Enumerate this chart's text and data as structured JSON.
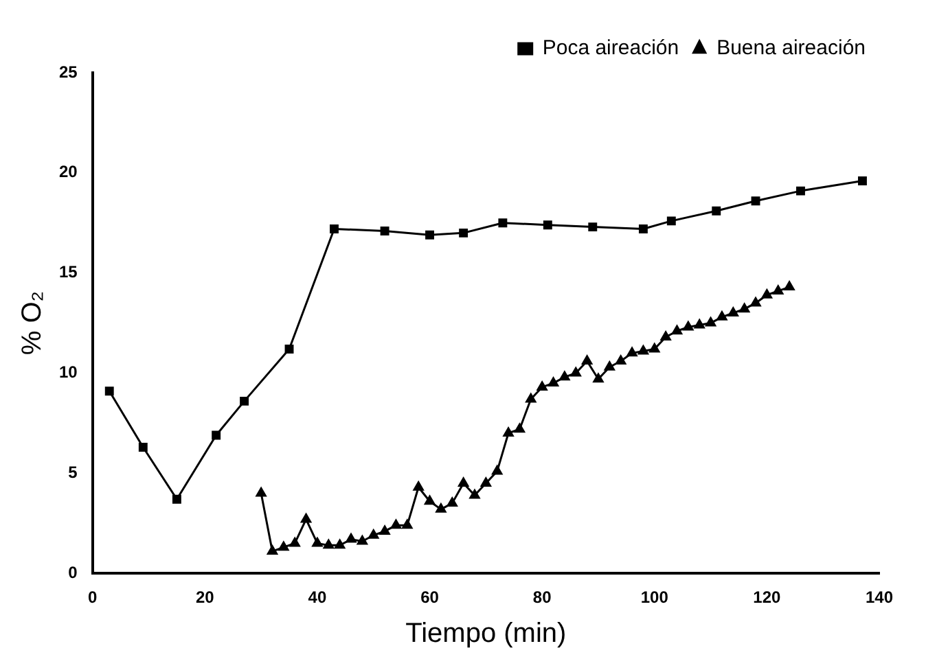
{
  "chart_data": {
    "type": "line",
    "xlabel": "Tiempo (min)",
    "ylabel": "% O₂",
    "xlim": [
      0,
      140
    ],
    "xticks": [
      0,
      20,
      40,
      60,
      80,
      100,
      120,
      140
    ],
    "ylim": [
      0,
      25
    ],
    "yticks": [
      0,
      5,
      10,
      15,
      20,
      25
    ],
    "grid": false,
    "legend": "top right",
    "line_style": "solid",
    "series": [
      {
        "name": "Poca aireación",
        "color": "#000000",
        "marker": "square",
        "x": [
          3,
          9,
          15,
          22,
          27,
          35,
          43,
          52,
          60,
          66,
          73,
          81,
          89,
          98,
          103,
          111,
          118,
          126,
          137
        ],
        "values": [
          9.1,
          6.3,
          3.7,
          6.9,
          8.6,
          11.2,
          17.2,
          17.1,
          16.9,
          17.0,
          17.5,
          17.4,
          17.3,
          17.2,
          17.6,
          18.1,
          18.6,
          19.1,
          19.6
        ]
      },
      {
        "name": "Buena aireación",
        "color": "#000000",
        "marker": "triangle",
        "x": [
          30,
          32,
          34,
          36,
          38,
          40,
          42,
          44,
          46,
          48,
          50,
          52,
          54,
          56,
          58,
          60,
          62,
          64,
          66,
          68,
          70,
          72,
          74,
          76,
          78,
          80,
          82,
          84,
          86,
          88,
          90,
          92,
          94,
          96,
          98,
          100,
          102,
          104,
          106,
          108,
          110,
          112,
          114,
          116,
          118,
          120,
          122,
          124
        ],
        "values": [
          4.0,
          1.1,
          1.3,
          1.5,
          2.7,
          1.5,
          1.4,
          1.4,
          1.7,
          1.6,
          1.9,
          2.1,
          2.4,
          2.4,
          4.3,
          3.6,
          3.2,
          3.5,
          4.5,
          3.9,
          4.5,
          5.1,
          7.0,
          7.2,
          8.7,
          9.3,
          9.5,
          9.8,
          10.0,
          10.6,
          9.7,
          10.3,
          10.6,
          11.0,
          11.1,
          11.2,
          11.8,
          12.1,
          12.3,
          12.4,
          12.5,
          12.8,
          13.0,
          13.2,
          13.5,
          13.9,
          14.1,
          14.3
        ]
      }
    ]
  }
}
